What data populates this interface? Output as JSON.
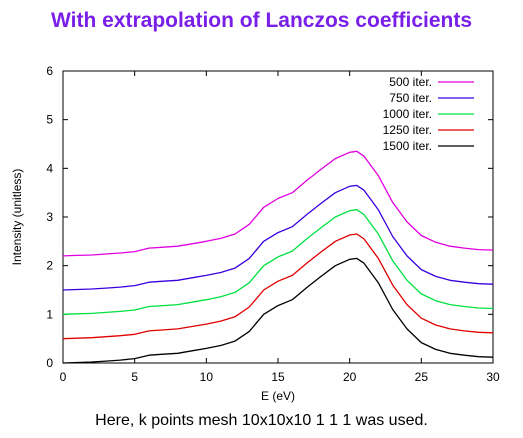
{
  "slide": {
    "title": "With extrapolation of Lanczos coefficients",
    "title_color": "#7a1fe8",
    "caption": "Here, k points mesh 10x10x10 1 1 1 was used."
  },
  "chart_data": {
    "type": "line",
    "title": "",
    "xlabel": "E (eV)",
    "ylabel": "Intensity (unitless)",
    "xlim": [
      0,
      30
    ],
    "ylim": [
      0,
      6
    ],
    "xticks": [
      0,
      5,
      10,
      15,
      20,
      25,
      30
    ],
    "yticks": [
      0,
      1,
      2,
      3,
      4,
      5,
      6
    ],
    "grid": false,
    "legend_position": "top-right",
    "x": [
      0,
      1,
      2,
      3,
      4,
      5,
      6,
      7,
      8,
      9,
      10,
      11,
      12,
      13,
      14,
      15,
      16,
      17,
      18,
      19,
      20,
      20.5,
      21,
      22,
      23,
      24,
      25,
      26,
      27,
      28,
      29,
      30
    ],
    "series": [
      {
        "name": "500 iter.",
        "color": "#e000e0",
        "values": [
          2.2,
          2.21,
          2.22,
          2.24,
          2.26,
          2.29,
          2.36,
          2.38,
          2.4,
          2.45,
          2.5,
          2.56,
          2.65,
          2.85,
          3.2,
          3.38,
          3.5,
          3.75,
          3.98,
          4.2,
          4.33,
          4.35,
          4.25,
          3.85,
          3.3,
          2.9,
          2.62,
          2.48,
          2.4,
          2.36,
          2.33,
          2.32
        ]
      },
      {
        "name": "750 iter.",
        "color": "#3a00e0",
        "values": [
          1.5,
          1.51,
          1.52,
          1.54,
          1.56,
          1.59,
          1.66,
          1.68,
          1.7,
          1.75,
          1.8,
          1.86,
          1.95,
          2.15,
          2.5,
          2.68,
          2.8,
          3.05,
          3.28,
          3.5,
          3.63,
          3.65,
          3.55,
          3.15,
          2.6,
          2.2,
          1.92,
          1.78,
          1.7,
          1.66,
          1.63,
          1.62
        ]
      },
      {
        "name": "1000 iter.",
        "color": "#00e040",
        "values": [
          1.0,
          1.01,
          1.02,
          1.04,
          1.06,
          1.09,
          1.16,
          1.18,
          1.2,
          1.25,
          1.3,
          1.36,
          1.45,
          1.65,
          2.0,
          2.18,
          2.3,
          2.55,
          2.78,
          3.0,
          3.13,
          3.15,
          3.05,
          2.65,
          2.1,
          1.7,
          1.42,
          1.28,
          1.2,
          1.16,
          1.13,
          1.12
        ]
      },
      {
        "name": "1250 iter.",
        "color": "#e00000",
        "values": [
          0.5,
          0.51,
          0.52,
          0.54,
          0.56,
          0.59,
          0.66,
          0.68,
          0.7,
          0.75,
          0.8,
          0.86,
          0.95,
          1.15,
          1.5,
          1.68,
          1.8,
          2.05,
          2.28,
          2.5,
          2.63,
          2.65,
          2.55,
          2.15,
          1.6,
          1.2,
          0.92,
          0.78,
          0.7,
          0.66,
          0.63,
          0.62
        ]
      },
      {
        "name": "1500 iter.",
        "color": "#000000",
        "values": [
          0.0,
          0.01,
          0.02,
          0.04,
          0.06,
          0.09,
          0.16,
          0.18,
          0.2,
          0.25,
          0.3,
          0.36,
          0.45,
          0.65,
          1.0,
          1.18,
          1.3,
          1.55,
          1.78,
          2.0,
          2.13,
          2.15,
          2.05,
          1.65,
          1.1,
          0.7,
          0.42,
          0.28,
          0.2,
          0.16,
          0.13,
          0.12
        ]
      }
    ]
  }
}
